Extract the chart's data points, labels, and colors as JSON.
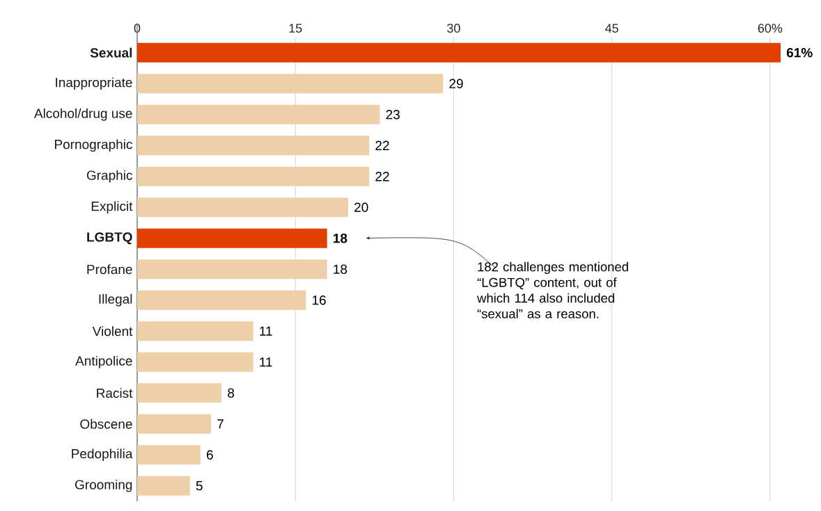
{
  "chart_data": {
    "type": "bar",
    "orientation": "horizontal",
    "categories": [
      "Sexual",
      "Inappropriate",
      "Alcohol/drug use",
      "Pornographic",
      "Graphic",
      "Explicit",
      "LGBTQ",
      "Profane",
      "Illegal",
      "Violent",
      "Antipolice",
      "Racist",
      "Obscene",
      "Pedophilia",
      "Grooming"
    ],
    "values": [
      61,
      29,
      23,
      22,
      22,
      20,
      18,
      18,
      16,
      11,
      11,
      8,
      7,
      6,
      5
    ],
    "value_labels": [
      "61%",
      "29",
      "23",
      "22",
      "22",
      "20",
      "18",
      "18",
      "16",
      "11",
      "11",
      "8",
      "7",
      "6",
      "5"
    ],
    "colors": [
      "#e34000",
      "#edcfa8",
      "#edcfa8",
      "#edcfa8",
      "#edcfa8",
      "#edcfa8",
      "#e34000",
      "#edcfa8",
      "#edcfa8",
      "#edcfa8",
      "#edcfa8",
      "#edcfa8",
      "#edcfa8",
      "#edcfa8",
      "#edcfa8"
    ],
    "xlim": [
      0,
      61
    ],
    "xticks": [
      0,
      15,
      30,
      45,
      {
        "value": 60,
        "label": "60%"
      }
    ],
    "grid": "x",
    "annotations": [
      "182 challenges mentioned “LGBTQ” content, out of which 114 also included “sexual” as a reason."
    ]
  }
}
